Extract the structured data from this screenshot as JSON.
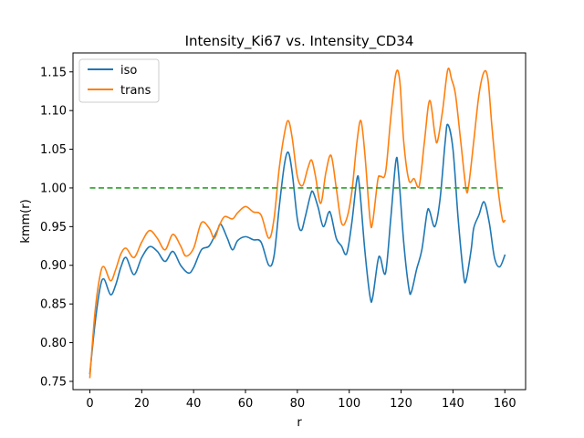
{
  "chart_data": {
    "type": "line",
    "title": "Intensity_Ki67 vs. Intensity_CD34",
    "xlabel": "r",
    "ylabel": "kmm(r)",
    "xlim": [
      -6.5,
      168
    ],
    "ylim": [
      0.7393,
      1.1745
    ],
    "xticks": [
      0,
      20,
      40,
      60,
      80,
      100,
      120,
      140,
      160
    ],
    "xtick_labels": [
      "0",
      "20",
      "40",
      "60",
      "80",
      "100",
      "120",
      "140",
      "160"
    ],
    "yticks": [
      0.75,
      0.8,
      0.85,
      0.9,
      0.95,
      1.0,
      1.05,
      1.1,
      1.15
    ],
    "ytick_labels": [
      "0.75",
      "0.80",
      "0.85",
      "0.90",
      "0.95",
      "1.00",
      "1.05",
      "1.10",
      "1.15"
    ],
    "grid": false,
    "legend_position": "top-left",
    "series": [
      {
        "name": "iso",
        "color": "#1f77b4",
        "style": "solid",
        "points": [
          [
            0,
            0.76
          ],
          [
            2,
            0.825
          ],
          [
            4,
            0.872
          ],
          [
            5.5,
            0.882
          ],
          [
            8,
            0.862
          ],
          [
            10,
            0.875
          ],
          [
            12,
            0.898
          ],
          [
            14,
            0.91
          ],
          [
            17,
            0.888
          ],
          [
            20,
            0.91
          ],
          [
            23,
            0.924
          ],
          [
            26,
            0.918
          ],
          [
            29,
            0.905
          ],
          [
            32,
            0.918
          ],
          [
            35,
            0.9
          ],
          [
            38,
            0.89
          ],
          [
            40,
            0.897
          ],
          [
            43,
            0.92
          ],
          [
            46,
            0.925
          ],
          [
            49,
            0.944
          ],
          [
            50.5,
            0.953
          ],
          [
            53,
            0.935
          ],
          [
            55,
            0.92
          ],
          [
            57,
            0.932
          ],
          [
            60,
            0.937
          ],
          [
            63,
            0.933
          ],
          [
            66,
            0.93
          ],
          [
            69,
            0.9
          ],
          [
            71,
            0.912
          ],
          [
            73,
            0.975
          ],
          [
            75,
            1.03
          ],
          [
            76.5,
            1.046
          ],
          [
            78,
            1.02
          ],
          [
            80,
            0.96
          ],
          [
            81.5,
            0.945
          ],
          [
            83,
            0.962
          ],
          [
            85,
            0.99
          ],
          [
            86,
            0.995
          ],
          [
            88,
            0.975
          ],
          [
            90,
            0.95
          ],
          [
            92,
            0.968
          ],
          [
            93,
            0.965
          ],
          [
            95,
            0.935
          ],
          [
            97,
            0.925
          ],
          [
            99,
            0.915
          ],
          [
            101,
            0.955
          ],
          [
            103,
            1.012
          ],
          [
            104,
            1.0
          ],
          [
            106,
            0.92
          ],
          [
            108,
            0.86
          ],
          [
            109,
            0.858
          ],
          [
            111,
            0.905
          ],
          [
            112,
            0.91
          ],
          [
            114,
            0.89
          ],
          [
            116,
            0.96
          ],
          [
            118,
            1.035
          ],
          [
            119,
            1.02
          ],
          [
            121,
            0.93
          ],
          [
            123,
            0.87
          ],
          [
            124,
            0.866
          ],
          [
            126,
            0.895
          ],
          [
            128,
            0.92
          ],
          [
            130,
            0.968
          ],
          [
            131,
            0.97
          ],
          [
            133,
            0.95
          ],
          [
            135,
            0.985
          ],
          [
            137,
            1.06
          ],
          [
            138,
            1.082
          ],
          [
            140,
            1.05
          ],
          [
            142,
            0.96
          ],
          [
            144,
            0.89
          ],
          [
            145,
            0.88
          ],
          [
            147,
            0.92
          ],
          [
            148,
            0.948
          ],
          [
            150,
            0.965
          ],
          [
            152,
            0.982
          ],
          [
            154,
            0.955
          ],
          [
            156,
            0.91
          ],
          [
            158,
            0.898
          ],
          [
            160,
            0.913
          ]
        ]
      },
      {
        "name": "trans",
        "color": "#ff7f0e",
        "style": "solid",
        "points": [
          [
            0,
            0.755
          ],
          [
            2,
            0.84
          ],
          [
            4,
            0.888
          ],
          [
            5.5,
            0.898
          ],
          [
            8,
            0.88
          ],
          [
            10,
            0.895
          ],
          [
            12,
            0.915
          ],
          [
            14,
            0.922
          ],
          [
            17,
            0.91
          ],
          [
            20,
            0.93
          ],
          [
            23,
            0.945
          ],
          [
            26,
            0.935
          ],
          [
            29,
            0.92
          ],
          [
            32,
            0.94
          ],
          [
            35,
            0.925
          ],
          [
            37,
            0.912
          ],
          [
            40,
            0.922
          ],
          [
            43,
            0.955
          ],
          [
            46,
            0.948
          ],
          [
            48,
            0.935
          ],
          [
            50,
            0.952
          ],
          [
            52,
            0.963
          ],
          [
            55,
            0.96
          ],
          [
            57,
            0.968
          ],
          [
            60,
            0.976
          ],
          [
            63,
            0.969
          ],
          [
            66,
            0.965
          ],
          [
            69,
            0.935
          ],
          [
            71,
            0.96
          ],
          [
            73,
            1.025
          ],
          [
            75,
            1.07
          ],
          [
            76.5,
            1.087
          ],
          [
            78,
            1.065
          ],
          [
            80,
            1.015
          ],
          [
            82,
            1.003
          ],
          [
            84,
            1.025
          ],
          [
            85.5,
            1.036
          ],
          [
            87,
            1.015
          ],
          [
            89,
            0.98
          ],
          [
            91,
            1.02
          ],
          [
            93,
            1.042
          ],
          [
            95,
            1.0
          ],
          [
            97,
            0.955
          ],
          [
            99,
            0.96
          ],
          [
            101,
            0.995
          ],
          [
            103,
            1.06
          ],
          [
            104.5,
            1.087
          ],
          [
            106,
            1.045
          ],
          [
            108,
            0.96
          ],
          [
            109,
            0.955
          ],
          [
            111,
            1.01
          ],
          [
            112,
            1.015
          ],
          [
            114,
            1.02
          ],
          [
            116,
            1.09
          ],
          [
            118,
            1.148
          ],
          [
            119.5,
            1.138
          ],
          [
            121,
            1.06
          ],
          [
            123,
            1.01
          ],
          [
            125,
            1.012
          ],
          [
            127,
            1.003
          ],
          [
            129,
            1.06
          ],
          [
            131,
            1.113
          ],
          [
            133,
            1.07
          ],
          [
            134,
            1.06
          ],
          [
            136,
            1.1
          ],
          [
            138,
            1.153
          ],
          [
            139.5,
            1.14
          ],
          [
            141,
            1.12
          ],
          [
            143,
            1.06
          ],
          [
            145,
            1.0
          ],
          [
            146,
            1.002
          ],
          [
            148,
            1.06
          ],
          [
            150,
            1.12
          ],
          [
            152,
            1.15
          ],
          [
            153.5,
            1.14
          ],
          [
            155,
            1.08
          ],
          [
            157,
            1.01
          ],
          [
            159,
            0.96
          ],
          [
            160,
            0.958
          ]
        ]
      },
      {
        "name": "",
        "color": "#2ca02c",
        "style": "dashed",
        "points": [
          [
            0,
            1.0
          ],
          [
            160,
            1.0
          ]
        ]
      }
    ],
    "legend": [
      "iso",
      "trans"
    ]
  }
}
